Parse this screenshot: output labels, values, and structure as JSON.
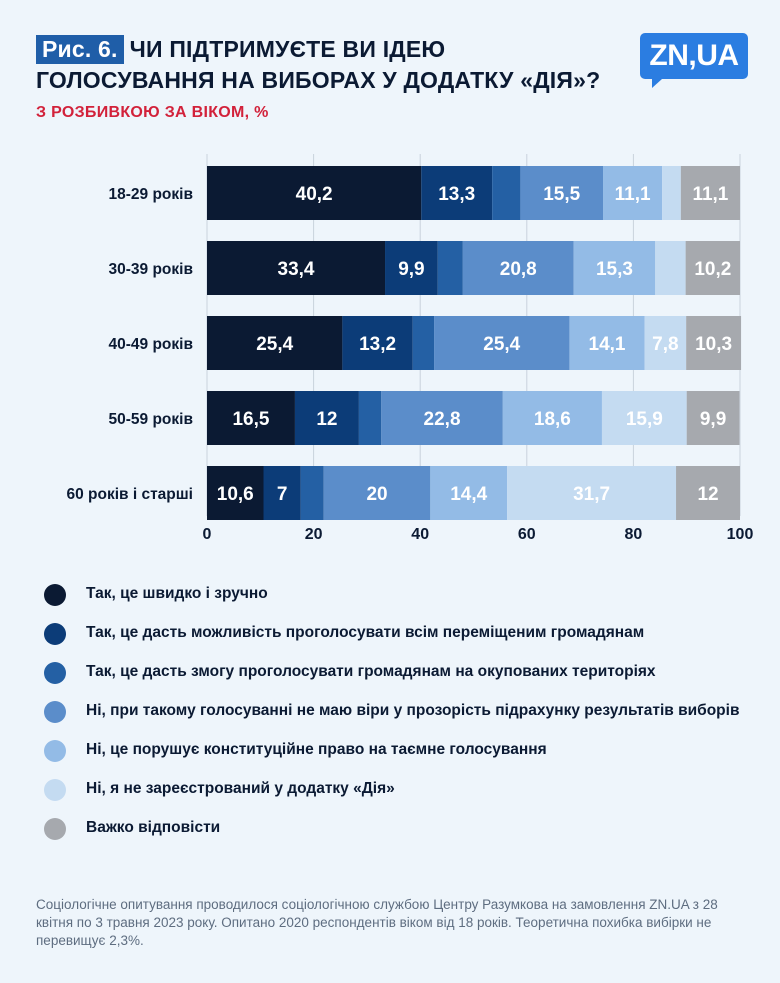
{
  "header": {
    "fig_label": "Рис. 6.",
    "title_line1": "ЧИ ПІДТРИМУЄТЕ ВИ ІДЕЮ",
    "title_line2": "ГОЛОСУВАННЯ НА ВИБОРАХ У ДОДАТКУ «ДІЯ»?",
    "subtitle": "З РОЗБИВКОЮ ЗА ВІКОМ, %",
    "logo": "ZN,UA"
  },
  "colors": {
    "series": [
      "#0b1a33",
      "#0c3c78",
      "#2460a4",
      "#5b8dca",
      "#93bbe6",
      "#c4dbf1",
      "#a6a9ae"
    ],
    "label_dark": "#0b1a33",
    "label_light": "#ffffff",
    "grid": "#c9d2dc",
    "accent_red": "#d2213a"
  },
  "chart_data": {
    "type": "bar",
    "orientation": "horizontal-stacked",
    "categories": [
      "18-29 років",
      "30-39 років",
      "40-49 років",
      "50-59 років",
      "60 років і старші"
    ],
    "series": [
      {
        "name": "Так, це швидко і зручно",
        "values": [
          40.2,
          33.4,
          25.4,
          16.5,
          10.6
        ],
        "labels": [
          "40,2",
          "33,4",
          "25,4",
          "16,5",
          "10,6"
        ]
      },
      {
        "name": "Так, це дасть можливість проголосувати всім переміщеним громадянам",
        "values": [
          13.3,
          9.9,
          13.2,
          12,
          7
        ],
        "labels": [
          "13,3",
          "9,9",
          "13,2",
          "12",
          "7"
        ]
      },
      {
        "name": "Так, це дасть змогу проголосувати громадянам на окупованих територіях",
        "values": [
          5.3,
          4.7,
          4.0,
          4.2,
          4.3
        ],
        "labels": [
          "",
          "",
          "",
          "",
          ""
        ]
      },
      {
        "name": "Ні, при такому голосуванні не маю віри у прозорість підрахунку результатів виборів",
        "values": [
          15.5,
          20.8,
          25.4,
          22.8,
          20
        ],
        "labels": [
          "15,5",
          "20,8",
          "25,4",
          "22,8",
          "20"
        ]
      },
      {
        "name": "Ні, це порушує конституційне право на таємне голосування",
        "values": [
          11.1,
          15.3,
          14.1,
          18.6,
          14.4
        ],
        "labels": [
          "11,1",
          "15,3",
          "14,1",
          "18,6",
          "14,4"
        ]
      },
      {
        "name": "Ні, я не зареєстрований у додатку «Дія»",
        "values": [
          3.5,
          5.7,
          7.8,
          15.9,
          31.7
        ],
        "labels": [
          "",
          "",
          "7,8",
          "15,9",
          "31,7"
        ]
      },
      {
        "name": "Важко відповісти",
        "values": [
          11.1,
          10.2,
          10.3,
          9.9,
          12
        ],
        "labels": [
          "11,1",
          "10,2",
          "10,3",
          "9,9",
          "12"
        ]
      }
    ],
    "xlim": [
      0,
      100
    ],
    "xticks": [
      0,
      20,
      40,
      60,
      80,
      100
    ],
    "grid": true,
    "legend_position": "bottom"
  },
  "footnote": "Соціологічне опитування проводилося соціологічною  службою Центру Разумкова на замовлення ZN.UA з 28 квітня по 3 травня 2023 року. Опитано 2020 респондентів віком від 18 років. Теоретична похибка вибірки не перевищує 2,3%."
}
